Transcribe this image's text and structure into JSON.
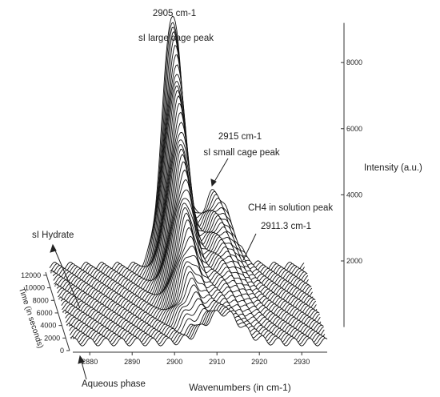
{
  "chart_data": {
    "type": "waterfall-spectra",
    "xlabel": "Wavenumbers (in cm-1)",
    "ylabel": "Time (in seconds)",
    "zlabel": "Intensity (a.u.)",
    "x_ticks": [
      "2880",
      "2890",
      "2900",
      "2910",
      "2920",
      "2930"
    ],
    "x_tick_values": [
      2880,
      2890,
      2900,
      2910,
      2920,
      2930
    ],
    "y_ticks": [
      "0",
      "2000",
      "4000",
      "6000",
      "8000",
      "10000",
      "12000"
    ],
    "y_tick_values": [
      0,
      2000,
      4000,
      6000,
      8000,
      10000,
      12000
    ],
    "z_ticks": [
      "2000",
      "4000",
      "6000",
      "8000"
    ],
    "z_tick_values": [
      2000,
      4000,
      6000,
      8000
    ],
    "xlim": [
      2876,
      2936
    ],
    "ylim": [
      0,
      12500
    ],
    "zlim": [
      0,
      9200
    ],
    "spectrum_count": 48,
    "peaks": [
      {
        "center": 2905,
        "amplitude": 7900,
        "width": 2.4,
        "onset": 0.08
      },
      {
        "center": 2915,
        "amplitude": 2300,
        "width": 3.6,
        "onset": 0.15
      },
      {
        "center": 2911.3,
        "amplitude": 900,
        "width": 4.2,
        "decay": 1.0
      }
    ],
    "annotations": [
      {
        "id": "large",
        "title": "2905 cm-1",
        "subtitle": "sI large cage peak"
      },
      {
        "id": "small",
        "title": "2915 cm-1",
        "subtitle": "sI small cage peak"
      },
      {
        "id": "solution",
        "title": "CH4 in solution peak",
        "subtitle": "2911.3 cm-1"
      },
      {
        "id": "hydrate",
        "title": "sI Hydrate"
      },
      {
        "id": "aqueous",
        "title": "Aqueous phase"
      }
    ],
    "colors": {
      "line": "#111111",
      "fill": "#ffffff",
      "text": "#222222"
    }
  }
}
